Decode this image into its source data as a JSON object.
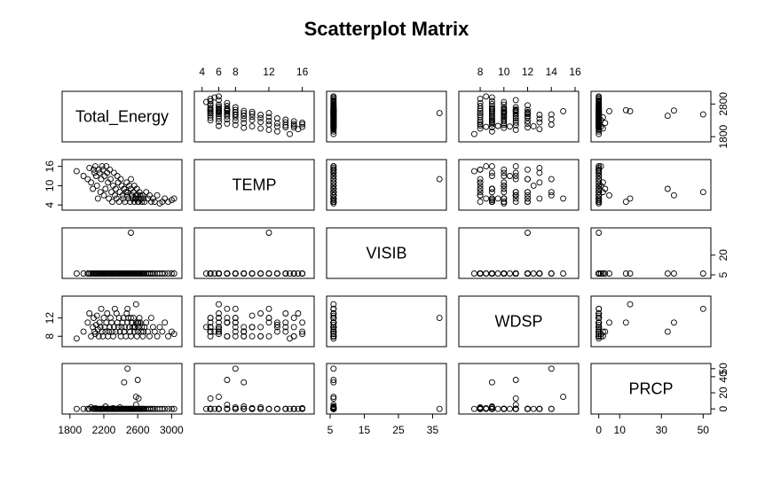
{
  "title": "Scatterplot Matrix",
  "chart_data": {
    "type": "scatter",
    "variables": [
      {
        "name": "Total_Energy",
        "lim": [
          1750,
          3080
        ],
        "ticks": [
          1800,
          2200,
          2600,
          3000
        ],
        "tick_side": "bottom",
        "values": [
          1880,
          1960,
          2010,
          2030,
          2050,
          2070,
          2080,
          2090,
          2100,
          2110,
          2120,
          2130,
          2140,
          2150,
          2160,
          2170,
          2180,
          2190,
          2200,
          2210,
          2220,
          2230,
          2240,
          2250,
          2260,
          2270,
          2280,
          2290,
          2300,
          2310,
          2320,
          2330,
          2340,
          2350,
          2360,
          2370,
          2380,
          2390,
          2400,
          2410,
          2420,
          2430,
          2440,
          2450,
          2460,
          2470,
          2480,
          2490,
          2500,
          2510,
          2520,
          2530,
          2540,
          2550,
          2560,
          2570,
          2580,
          2590,
          2600,
          2610,
          2620,
          2630,
          2640,
          2650,
          2660,
          2670,
          2680,
          2700,
          2720,
          2740,
          2760,
          2780,
          2800,
          2830,
          2860,
          2890,
          2920,
          2960,
          3000,
          3030,
          2560,
          2520,
          2480,
          2440,
          2600,
          2580,
          2610
        ]
      },
      {
        "name": "TEMP",
        "lim": [
          3.5,
          17
        ],
        "ticks": [
          4,
          6,
          8,
          12,
          16
        ],
        "tick_side": "left",
        "values": [
          14.5,
          13,
          12,
          15.5,
          11,
          9,
          15,
          14,
          16,
          13,
          10,
          6,
          15,
          14,
          8,
          12,
          16,
          15,
          7,
          13,
          9,
          16,
          14,
          11,
          6,
          15,
          12,
          8,
          5,
          10,
          14,
          7,
          9,
          6,
          13,
          11,
          5,
          8,
          12,
          10,
          7,
          6,
          9,
          5,
          8,
          11,
          7,
          6,
          10,
          5,
          9,
          7,
          6,
          8,
          5,
          6,
          7,
          9,
          5,
          6,
          8,
          7,
          6,
          5,
          7,
          6,
          5,
          8,
          6,
          7,
          5,
          6,
          5,
          7,
          4.5,
          5,
          6,
          5,
          5.5,
          6,
          10,
          12,
          8,
          9,
          7,
          6,
          5
        ]
      },
      {
        "name": "VISIB",
        "lim": [
          5,
          38
        ],
        "ticks": [
          5,
          15,
          25,
          35
        ],
        "ticks_right": [
          5,
          20
        ],
        "tick_side": "right",
        "values": [
          6,
          6,
          6,
          6,
          6,
          6,
          6,
          6,
          6,
          6,
          6,
          6,
          6,
          6,
          6,
          6,
          6,
          6,
          6,
          6,
          6,
          6,
          6,
          6,
          6,
          6,
          6,
          6,
          6,
          6,
          6,
          6,
          6,
          6,
          6,
          6,
          6,
          6,
          6,
          6,
          6,
          6,
          6,
          6,
          6,
          6,
          6,
          6,
          6,
          6,
          6,
          6,
          6,
          6,
          6,
          6,
          6,
          6,
          6,
          6,
          6,
          6,
          6,
          6,
          6,
          6,
          6,
          6,
          6,
          6,
          6,
          6,
          6,
          6,
          6,
          6,
          6,
          6,
          6,
          6,
          6,
          37,
          6,
          6,
          6,
          6,
          6
        ]
      },
      {
        "name": "WDSP",
        "lim": [
          6.5,
          16
        ],
        "ticks": [
          8,
          10,
          12,
          14,
          16
        ],
        "ticks_left": [
          8,
          12
        ],
        "tick_side": "left",
        "values": [
          7.5,
          9,
          11,
          13,
          8,
          10,
          12,
          9,
          8.5,
          10.5,
          12.5,
          9.5,
          8,
          11,
          10,
          14,
          9,
          8,
          12,
          10,
          9,
          11,
          13,
          8,
          9,
          10,
          12,
          11,
          9,
          8,
          10,
          14,
          9,
          13,
          11,
          10,
          12,
          9,
          8,
          10,
          11,
          12,
          9,
          10,
          8,
          13,
          11,
          12,
          10,
          9,
          8,
          11,
          10,
          12,
          9,
          10,
          11,
          8,
          9,
          10,
          12,
          11,
          9,
          10,
          8,
          9,
          10,
          11,
          9,
          8,
          12,
          10,
          9,
          8,
          10,
          9,
          11,
          8,
          9,
          8.5,
          10,
          12,
          14,
          9,
          11,
          15,
          11
        ]
      },
      {
        "name": "PRCP",
        "lim": [
          -2,
          52
        ],
        "ticks": [
          0,
          10,
          30,
          50
        ],
        "ticks_right": [
          0,
          20,
          40,
          50
        ],
        "tick_side": "right",
        "values": [
          0,
          0,
          0,
          0,
          2,
          0,
          0,
          0,
          1,
          0,
          0,
          0,
          0,
          0,
          0,
          0,
          0,
          0,
          0,
          0,
          3,
          0,
          0,
          0,
          0,
          0,
          0,
          0,
          0,
          1,
          0,
          0,
          0,
          0,
          0,
          0,
          0,
          2,
          0,
          0,
          0,
          0,
          0,
          0,
          0,
          0,
          0,
          0,
          0,
          0,
          0,
          0,
          0,
          0,
          0,
          0,
          5,
          0,
          0,
          0,
          0,
          0,
          0,
          0,
          0,
          0,
          0,
          0,
          0,
          0,
          0,
          0,
          0,
          0,
          0,
          0,
          0,
          0,
          0,
          0,
          0,
          0,
          50,
          33,
          36,
          15,
          13
        ]
      }
    ],
    "grid": false,
    "legend": "none"
  }
}
